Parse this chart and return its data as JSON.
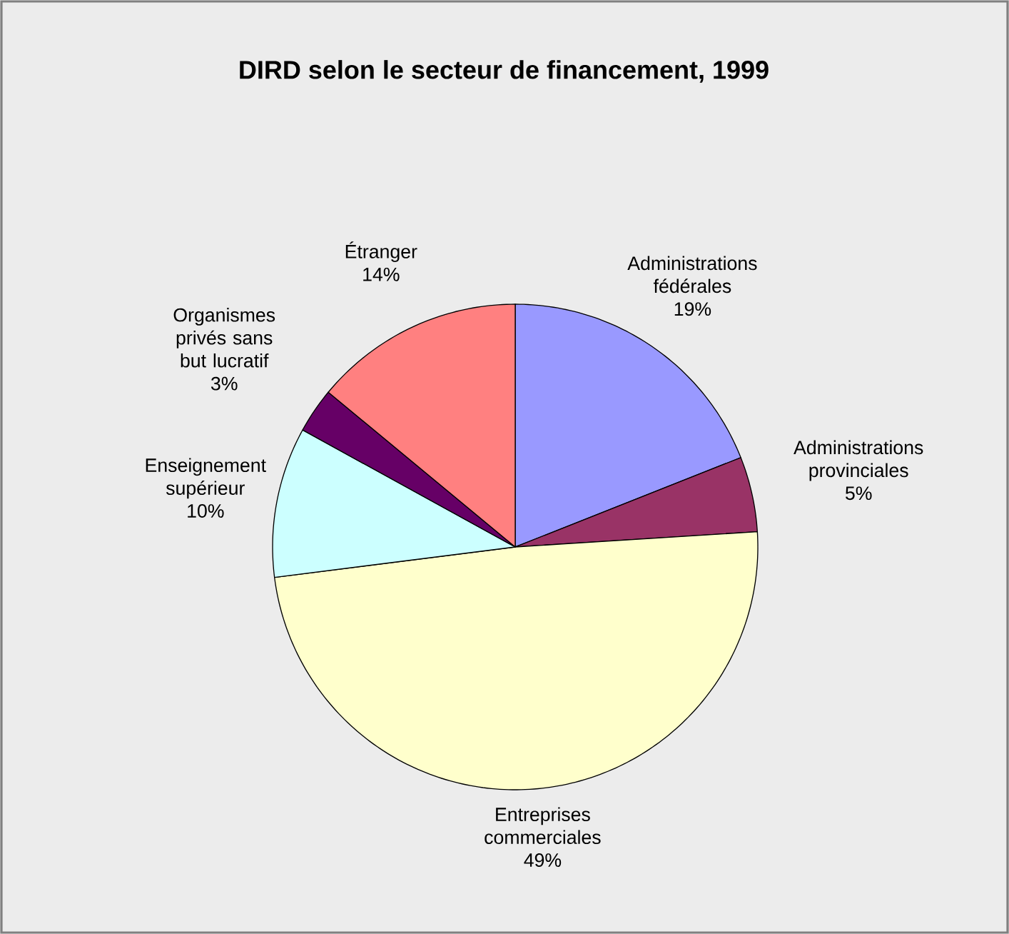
{
  "chart_data": {
    "type": "pie",
    "title": "DIRD selon le secteur de financement, 1999",
    "categories": [
      "Administrations fédérales",
      "Administrations provinciales",
      "Entreprises commerciales",
      "Enseignement supérieur",
      "Organismes privés sans but lucratif",
      "Étranger"
    ],
    "values": [
      19,
      5,
      49,
      10,
      3,
      14
    ],
    "value_labels": [
      "19%",
      "5%",
      "49%",
      "10%",
      "3%",
      "14%"
    ],
    "colors": [
      "#9999ff",
      "#993366",
      "#ffffcc",
      "#ccffff",
      "#660066",
      "#ff8080"
    ]
  }
}
